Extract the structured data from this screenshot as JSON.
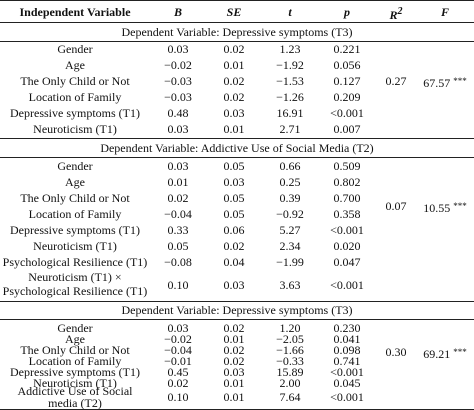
{
  "header": {
    "var": "Independent Variable",
    "b": "B",
    "se": "SE",
    "t": "t",
    "p": "p",
    "r2_base": "R",
    "r2_sup": "2",
    "f": "F"
  },
  "sections": [
    {
      "title": "Dependent Variable: Depressive symptoms (T3)",
      "r2": "0.27",
      "f": "67.57",
      "f_sig": "***",
      "rows": [
        {
          "var": "Gender",
          "b": "0.03",
          "se": "0.02",
          "t": "1.23",
          "p": "0.221"
        },
        {
          "var": "Age",
          "b": "−0.02",
          "se": "0.01",
          "t": "−1.92",
          "p": "0.056"
        },
        {
          "var": "The Only Child or Not",
          "b": "−0.03",
          "se": "0.02",
          "t": "−1.53",
          "p": "0.127"
        },
        {
          "var": "Location of Family",
          "b": "−0.03",
          "se": "0.02",
          "t": "−1.26",
          "p": "0.209"
        },
        {
          "var": "Depressive symptoms (T1)",
          "b": "0.48",
          "se": "0.03",
          "t": "16.91",
          "p": "<0.001"
        },
        {
          "var": "Neuroticism (T1)",
          "b": "0.03",
          "se": "0.01",
          "t": "2.71",
          "p": "0.007"
        }
      ]
    },
    {
      "title": "Dependent Variable: Addictive Use of Social Media (T2)",
      "r2": "0.07",
      "f": "10.55",
      "f_sig": "***",
      "rows": [
        {
          "var": "Gender",
          "b": "0.03",
          "se": "0.05",
          "t": "0.66",
          "p": "0.509"
        },
        {
          "var": "Age",
          "b": "0.01",
          "se": "0.03",
          "t": "0.25",
          "p": "0.802"
        },
        {
          "var": "The Only Child or Not",
          "b": "0.02",
          "se": "0.05",
          "t": "0.39",
          "p": "0.700"
        },
        {
          "var": "Location of Family",
          "b": "−0.04",
          "se": "0.05",
          "t": "−0.92",
          "p": "0.358"
        },
        {
          "var": "Depressive symptoms (T1)",
          "b": "0.33",
          "se": "0.06",
          "t": "5.27",
          "p": "<0.001"
        },
        {
          "var": "Neuroticism (T1)",
          "b": "0.05",
          "se": "0.02",
          "t": "2.34",
          "p": "0.020"
        },
        {
          "var": "Psychological Resilience (T1)",
          "b": "−0.08",
          "se": "0.04",
          "t": "−1.99",
          "p": "0.047"
        },
        {
          "var_line1": "Neuroticism (T1) ×",
          "var_line2": "Psychological Resilience (T1)",
          "b": "0.10",
          "se": "0.03",
          "t": "3.63",
          "p": "<0.001"
        }
      ]
    },
    {
      "title": "Dependent Variable: Depressive symptoms (T3)",
      "r2": "0.30",
      "f": "69.21",
      "f_sig": "***",
      "rows": [
        {
          "var": "Gender",
          "b": "0.03",
          "se": "0.02",
          "t": "1.20",
          "p": "0.230"
        },
        {
          "var": "Age",
          "b": "−0.02",
          "se": "0.01",
          "t": "−2.05",
          "p": "0.041"
        },
        {
          "var": "The Only Child or Not",
          "b": "−0.04",
          "se": "0.02",
          "t": "−1.66",
          "p": "0.098"
        },
        {
          "var": "Location of Family",
          "b": "−0.01",
          "se": "0.02",
          "t": "−0.33",
          "p": "0.741"
        },
        {
          "var": "Depressive symptoms (T1)",
          "b": "0.45",
          "se": "0.03",
          "t": "15.89",
          "p": "<0.001"
        },
        {
          "var": "Neuroticism (T1)",
          "b": "0.02",
          "se": "0.01",
          "t": "2.00",
          "p": "0.045"
        },
        {
          "var_line1": "Addictive Use of Social",
          "var_line2": "media (T2)",
          "b": "0.10",
          "se": "0.01",
          "t": "7.64",
          "p": "<0.001"
        }
      ]
    }
  ]
}
